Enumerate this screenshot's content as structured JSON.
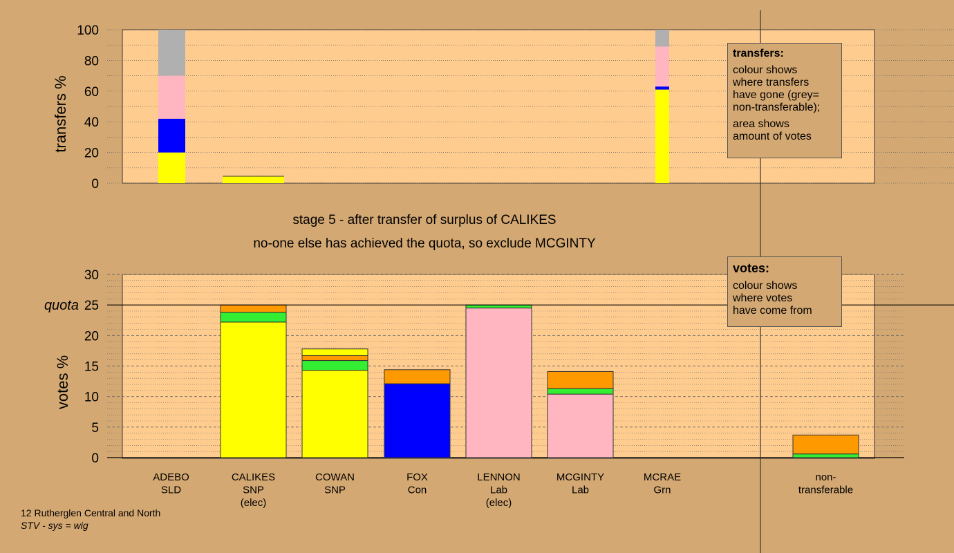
{
  "chart_data": [
    {
      "type": "bar",
      "stacked": true,
      "ylabel": "transfers %",
      "ylim": [
        0,
        100
      ],
      "yticks": [
        0,
        20,
        40,
        60,
        80,
        100
      ],
      "grid": "dotted",
      "bars": [
        {
          "candidate": "ADEBO",
          "segments": [
            {
              "color": "#ffff00",
              "from": 0,
              "to": 20
            },
            {
              "color": "#0000ff",
              "from": 20,
              "to": 42
            },
            {
              "color": "#ffb6c1",
              "from": 42,
              "to": 70
            },
            {
              "color": "#b0b0b0",
              "from": 70,
              "to": 100
            }
          ]
        },
        {
          "candidate": "CALIKES",
          "segments": [
            {
              "color": "#ffff00",
              "from": 0,
              "to": 4.5
            }
          ]
        },
        {
          "candidate": "non-transferable",
          "segments": [
            {
              "color": "#ffff00",
              "from": 0,
              "to": 61
            },
            {
              "color": "#0000ff",
              "from": 61,
              "to": 63
            },
            {
              "color": "#ffb6c1",
              "from": 63,
              "to": 89
            },
            {
              "color": "#b0b0b0",
              "from": 89,
              "to": 100
            }
          ]
        }
      ]
    },
    {
      "type": "bar",
      "stacked": true,
      "ylabel": "votes %",
      "ylim": [
        0,
        30
      ],
      "yticks": [
        0,
        5,
        10,
        15,
        20,
        25,
        30
      ],
      "quota": 25,
      "quota_label": "quota",
      "categories": [
        {
          "name": "ADEBO",
          "party": "SLD",
          "note": ""
        },
        {
          "name": "CALIKES",
          "party": "SNP",
          "note": "(elec)"
        },
        {
          "name": "COWAN",
          "party": "SNP",
          "note": ""
        },
        {
          "name": "FOX",
          "party": "Con",
          "note": ""
        },
        {
          "name": "LENNON",
          "party": "Lab",
          "note": "(elec)"
        },
        {
          "name": "MCGINTY",
          "party": "Lab",
          "note": ""
        },
        {
          "name": "MCRAE",
          "party": "Grn",
          "note": ""
        },
        {
          "name": "non-",
          "party": "transferable",
          "note": ""
        }
      ],
      "stacks": [
        [],
        [
          {
            "color": "#ffff00",
            "value": 22.2
          },
          {
            "color": "#33ee33",
            "value": 1.6
          },
          {
            "color": "#ff9900",
            "value": 1.2
          }
        ],
        [
          {
            "color": "#ffff00",
            "value": 14.3
          },
          {
            "color": "#33ee33",
            "value": 1.6
          },
          {
            "color": "#ff9900",
            "value": 0.8
          },
          {
            "color": "#ffff00",
            "value": 1.1
          }
        ],
        [
          {
            "color": "#0000ff",
            "value": 12.1
          },
          {
            "color": "#ff9900",
            "value": 2.3
          }
        ],
        [
          {
            "color": "#ffb6c1",
            "value": 24.5
          },
          {
            "color": "#33ee33",
            "value": 0.5
          }
        ],
        [
          {
            "color": "#ffb6c1",
            "value": 10.4
          },
          {
            "color": "#33ee33",
            "value": 0.9
          },
          {
            "color": "#ff9900",
            "value": 2.8
          }
        ],
        [],
        [
          {
            "color": "#33ee33",
            "value": 0.6
          },
          {
            "color": "#ff9900",
            "value": 3.1
          }
        ]
      ]
    }
  ],
  "stage_title": "stage 5 - after transfer of surplus of CALIKES",
  "stage_subtitle": "no-one else has achieved the quota, so exclude MCGINTY",
  "legend_transfers": {
    "heading": "transfers:",
    "line1": "colour shows\nwhere transfers\nhave gone (grey=\nnon-transferable);",
    "line2": "area shows\namount of votes"
  },
  "legend_votes": {
    "heading": "votes:",
    "line1": "colour shows\nwhere votes\nhave come from"
  },
  "footnote": {
    "line1": "12 Rutherglen Central and North",
    "line2": "STV - sys = wig"
  }
}
